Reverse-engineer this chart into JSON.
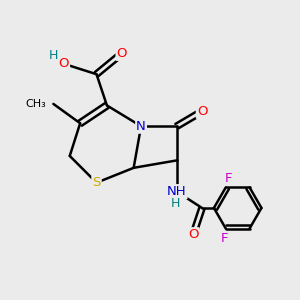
{
  "bg_color": "#ebebeb",
  "atom_colors": {
    "O": "#ff0000",
    "N": "#0000cc",
    "S": "#ccaa00",
    "F": "#cc00cc",
    "H": "#008080",
    "C": "#000000"
  },
  "bond_width": 1.8,
  "figsize": [
    3.0,
    3.0
  ],
  "dpi": 100
}
